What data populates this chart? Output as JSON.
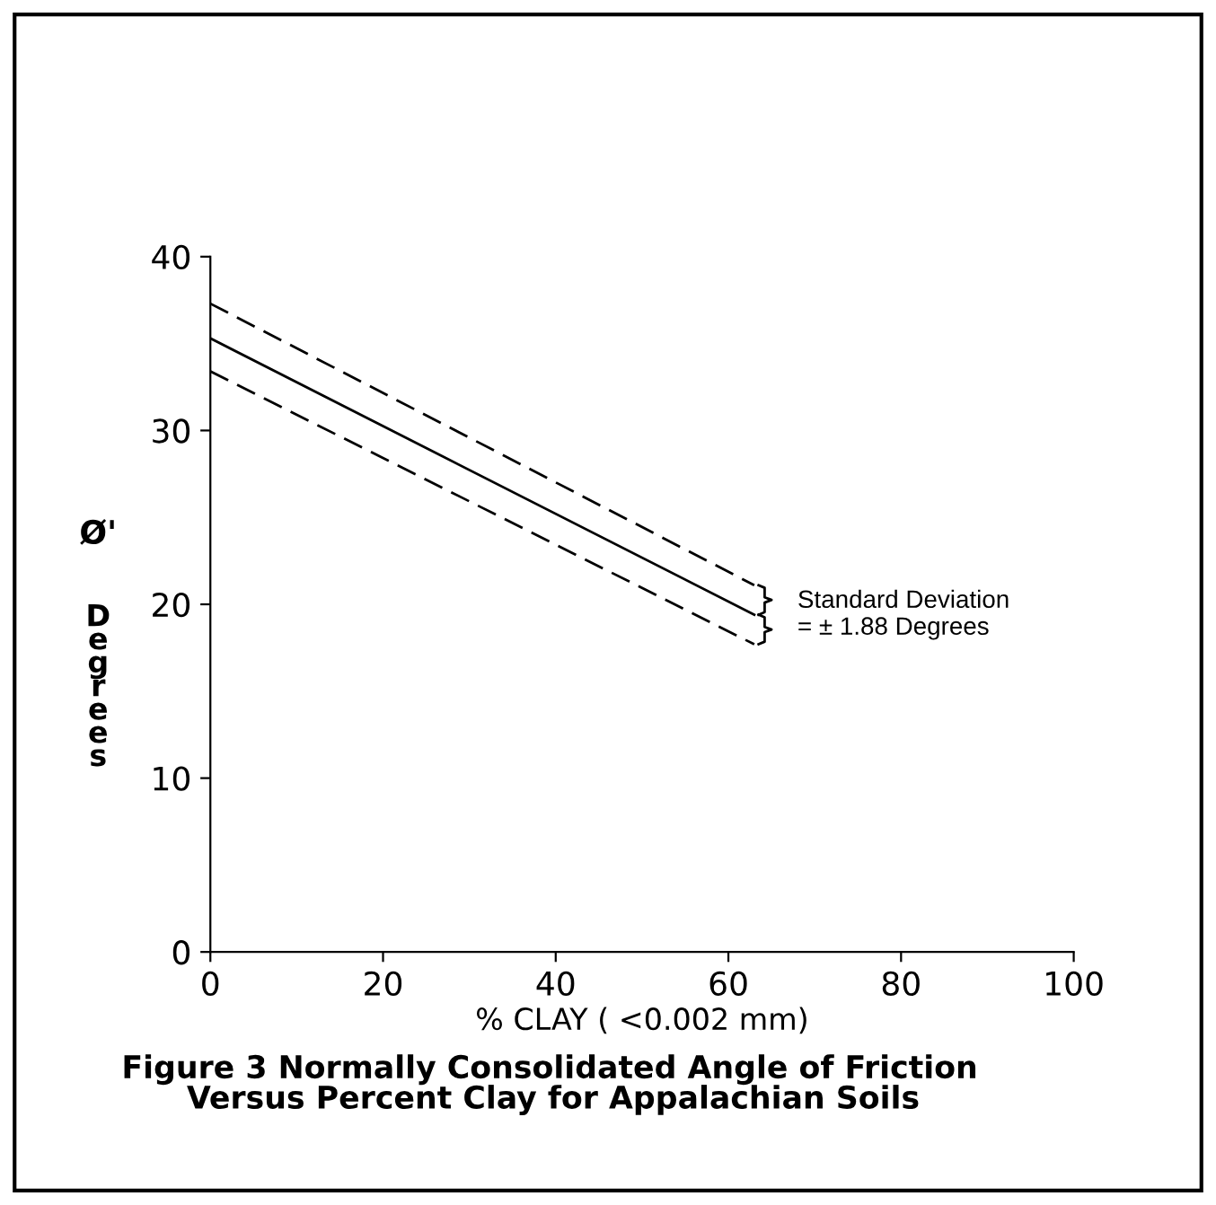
{
  "chart_data": {
    "type": "line",
    "title": "Figure 3 Normally Consolidated Angle of Friction\n      Versus Percent Clay for Appalachian Soils",
    "xlabel": "% CLAY ( <0.002 mm)",
    "ylabel": "Ø'\nDegrees",
    "xlim": [
      0,
      100
    ],
    "xticks": [
      0,
      20,
      40,
      60,
      80,
      100
    ],
    "ylim": [
      0,
      40
    ],
    "yticks": [
      0,
      10,
      20,
      30,
      40
    ],
    "grid": false,
    "marker": "none",
    "series": [
      {
        "color": "#000000",
        "line_style": "dashed",
        "values": [
          37.3,
          21.1
        ]
      },
      {
        "color": "#000000",
        "line_style": "solid",
        "values": [
          35.3,
          19.4
        ]
      },
      {
        "color": "#000000",
        "line_style": "dashed",
        "values": [
          33.4,
          17.7
        ]
      }
    ],
    "x": [
      0,
      63
    ],
    "annotations": [
      "Standard Deviation\n= ± 1.88 Degrees"
    ]
  }
}
